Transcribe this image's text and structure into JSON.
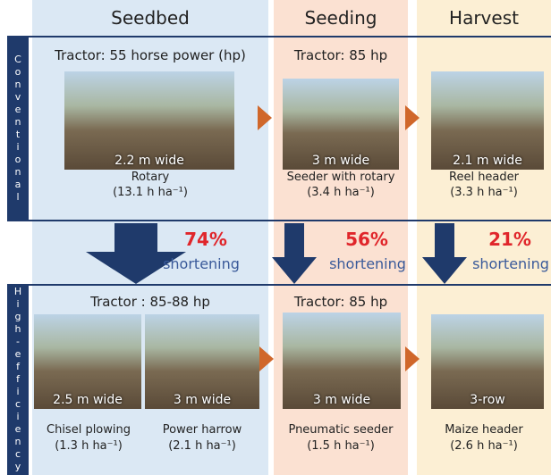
{
  "columns": [
    "Seedbed",
    "Seeding",
    "Harvest"
  ],
  "conventional": {
    "label": "Conventional",
    "tractors": [
      "Tractor: 55 horse power (hp)",
      "Tractor: 85 hp"
    ],
    "implements": [
      {
        "photo_label": "2.2 m wide",
        "name": "Rotary",
        "rate": "(13.1 h ha⁻¹)"
      },
      {
        "photo_label": "3 m wide",
        "name": "Seeder with rotary",
        "rate": "(3.4 h ha⁻¹)"
      },
      {
        "photo_label": "2.1 m wide",
        "name": "Reel header",
        "rate": "(3.3 h ha⁻¹)"
      }
    ]
  },
  "reductions": [
    {
      "percent": "74%",
      "word": "shortening"
    },
    {
      "percent": "56%",
      "word": "shortening"
    },
    {
      "percent": "21%",
      "word": "shortening"
    }
  ],
  "high_efficiency": {
    "label": "High-efficiency",
    "tractors": [
      "Tractor : 85-88 hp",
      "Tractor: 85 hp"
    ],
    "implements": [
      {
        "photo_label": "2.5 m wide",
        "name": "Chisel plowing",
        "rate": "(1.3 h ha⁻¹)"
      },
      {
        "photo_label": "3 m wide",
        "name": "Power harrow",
        "rate": "(2.1 h ha⁻¹)"
      },
      {
        "photo_label": "3 m wide",
        "name": "Pneumatic seeder",
        "rate": "(1.5 h ha⁻¹)"
      },
      {
        "photo_label": "3-row",
        "name": "Maize header",
        "rate": "(2.6 h ha⁻¹)"
      }
    ]
  }
}
